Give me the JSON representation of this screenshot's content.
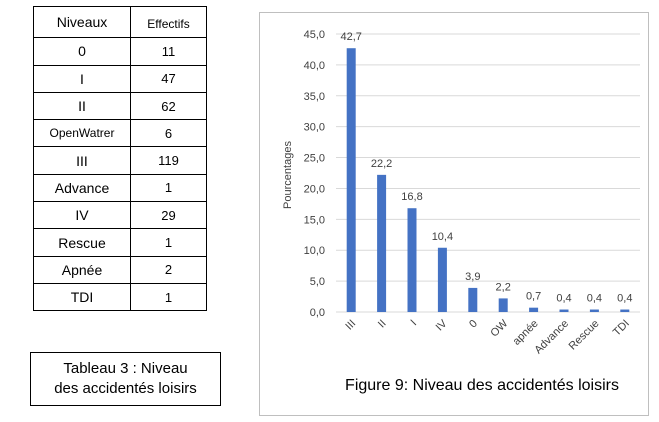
{
  "table": {
    "header": [
      "Niveaux",
      "Effectifs"
    ],
    "rows": [
      [
        "0",
        11
      ],
      [
        "I",
        47
      ],
      [
        "II",
        62
      ],
      [
        "OpenWatrer",
        6
      ],
      [
        "III",
        119
      ],
      [
        "Advance",
        1
      ],
      [
        "IV",
        29
      ],
      [
        "Rescue",
        1
      ],
      [
        "Apnée",
        2
      ],
      [
        "TDI",
        1
      ]
    ]
  },
  "table_caption": "Tableau 3 : Niveau des accidentés loisirs",
  "chart_data": {
    "type": "bar",
    "caption": "Figure 9: Niveau des accidentés loisirs",
    "y_label": "Pourcentages",
    "categories": [
      "III",
      "II",
      "I",
      "IV",
      "0",
      "OW",
      "apnée",
      "Advance",
      "Rescue",
      "TDI"
    ],
    "values": [
      42.7,
      22.2,
      16.8,
      10.4,
      3.9,
      2.2,
      0.7,
      0.4,
      0.4,
      0.4
    ],
    "value_labels": [
      "42,7",
      "22,2",
      "16,8",
      "10,4",
      "3,9",
      "2,2",
      "0,7",
      "0,4",
      "0,4",
      "0,4"
    ],
    "color": "#4472c4",
    "ylim": [
      0,
      45
    ],
    "yticks": [
      {
        "value": 0,
        "label": "0,0"
      },
      {
        "value": 5,
        "label": "5,0"
      },
      {
        "value": 10,
        "label": "10,0"
      },
      {
        "value": 15,
        "label": "15,0"
      },
      {
        "value": 20,
        "label": "20,0"
      },
      {
        "value": 25,
        "label": "25,0"
      },
      {
        "value": 30,
        "label": "30,0"
      },
      {
        "value": 35,
        "label": "35,0"
      },
      {
        "value": 40,
        "label": "40,0"
      },
      {
        "value": 45,
        "label": "45,0"
      }
    ],
    "grid": true
  }
}
